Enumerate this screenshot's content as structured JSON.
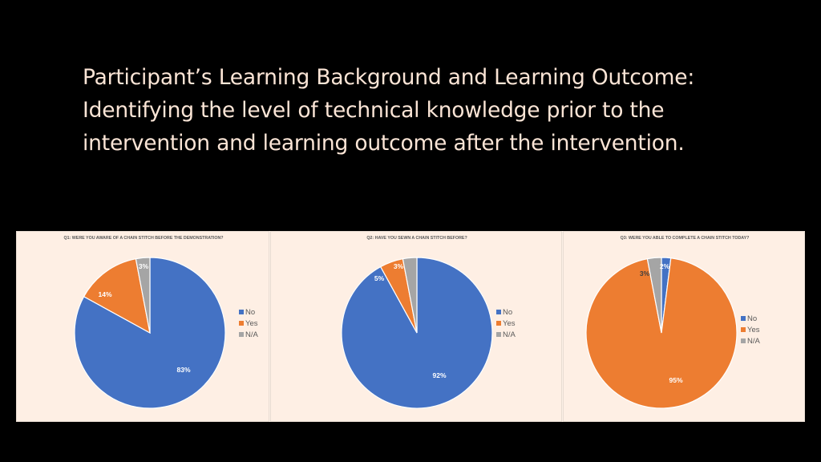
{
  "slide": {
    "title_lines": [
      "Participant’s Learning Background and Learning Outcome:",
      "Identifying the level of technical knowledge prior to the",
      "intervention and learning outcome after the intervention."
    ]
  },
  "colors": {
    "No": "#4472C4",
    "Yes": "#ED7D31",
    "N/A": "#A5A5A5"
  },
  "chart_data": [
    {
      "type": "pie",
      "title": "Q1: WERE YOU AWARE OF A CHAIN STITCH BEFORE THE DEMONSTRATION?",
      "categories": [
        "No",
        "Yes",
        "N/A"
      ],
      "values": [
        83,
        14,
        3
      ],
      "labels": [
        "83%",
        "14%",
        "3%"
      ],
      "legend": "right"
    },
    {
      "type": "pie",
      "title": "Q2: HAVE YOU SEWN A CHAIN STITCH BEFORE?",
      "categories": [
        "No",
        "Yes",
        "N/A"
      ],
      "values": [
        92,
        5,
        3
      ],
      "labels": [
        "92%",
        "5%",
        "3%"
      ],
      "legend": "right"
    },
    {
      "type": "pie",
      "title": "Q3: WERE YOU ABLE TO COMPLETE A CHAIN STITCH TODAY?",
      "categories": [
        "No",
        "Yes",
        "N/A"
      ],
      "values": [
        2,
        95,
        3
      ],
      "labels": [
        "2%",
        "95%",
        "3%"
      ],
      "legend": "right"
    }
  ]
}
